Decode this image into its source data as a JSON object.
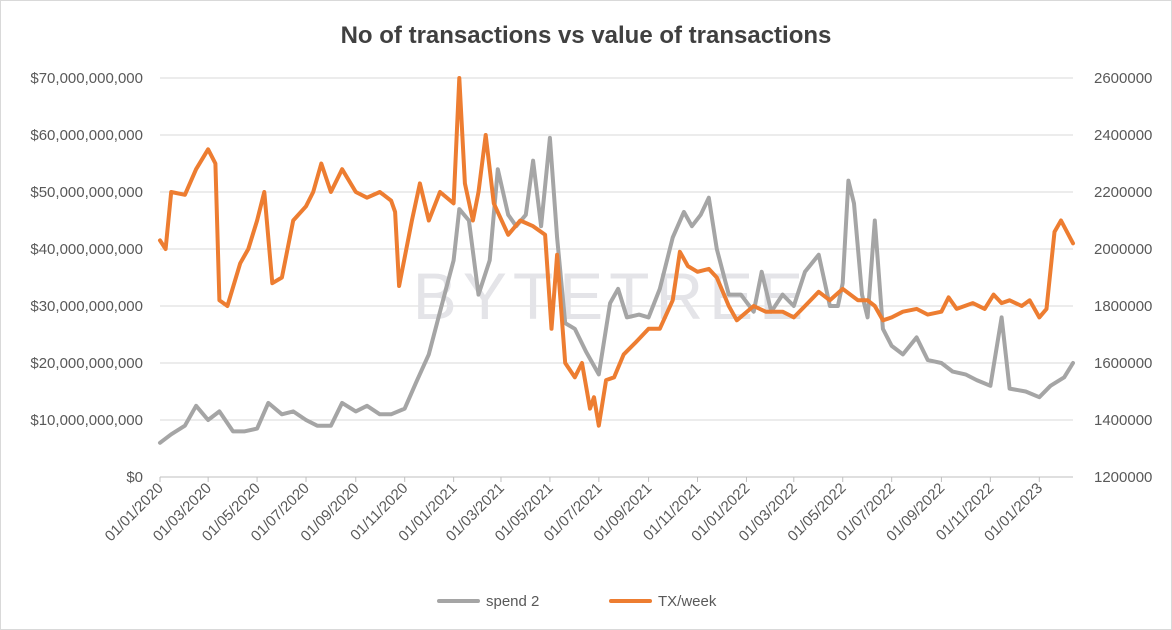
{
  "chart_data": {
    "type": "line",
    "title": "No of transactions vs value of transactions",
    "watermark": "BYTETREE",
    "x_tick_labels": [
      "01/01/2020",
      "01/03/2020",
      "01/05/2020",
      "01/07/2020",
      "01/09/2020",
      "01/11/2020",
      "01/01/2021",
      "01/03/2021",
      "01/05/2021",
      "01/07/2021",
      "01/09/2021",
      "01/11/2021",
      "01/01/2022",
      "01/03/2022",
      "01/05/2022",
      "01/07/2022",
      "01/09/2022",
      "01/11/2022",
      "01/01/2023"
    ],
    "x_range": [
      "2020-01-01",
      "2023-02-12"
    ],
    "y_left": {
      "ticks": [
        "$0",
        "$10,000,000,000",
        "$20,000,000,000",
        "$30,000,000,000",
        "$40,000,000,000",
        "$50,000,000,000",
        "$60,000,000,000",
        "$70,000,000,000"
      ],
      "range": [
        0,
        70000000000
      ]
    },
    "y_right": {
      "ticks": [
        "1200000",
        "1400000",
        "1600000",
        "1800000",
        "2000000",
        "2200000",
        "2400000",
        "2600000"
      ],
      "range": [
        1200000,
        2600000
      ]
    },
    "grid": true,
    "legend_position": "bottom",
    "series": [
      {
        "name": "spend 2",
        "axis": "left",
        "color": "#a5a5a5",
        "points": [
          [
            "2020-01-01",
            6000000000
          ],
          [
            "2020-01-15",
            7500000000
          ],
          [
            "2020-02-01",
            9000000000
          ],
          [
            "2020-02-15",
            12500000000
          ],
          [
            "2020-03-01",
            10000000000
          ],
          [
            "2020-03-15",
            11500000000
          ],
          [
            "2020-04-01",
            8000000000
          ],
          [
            "2020-04-15",
            8000000000
          ],
          [
            "2020-05-01",
            8500000000
          ],
          [
            "2020-05-15",
            13000000000
          ],
          [
            "2020-06-01",
            11000000000
          ],
          [
            "2020-06-15",
            11500000000
          ],
          [
            "2020-07-01",
            10000000000
          ],
          [
            "2020-07-15",
            9000000000
          ],
          [
            "2020-08-01",
            9000000000
          ],
          [
            "2020-08-15",
            13000000000
          ],
          [
            "2020-09-01",
            11500000000
          ],
          [
            "2020-09-15",
            12500000000
          ],
          [
            "2020-10-01",
            11000000000
          ],
          [
            "2020-10-15",
            11000000000
          ],
          [
            "2020-11-01",
            12000000000
          ],
          [
            "2020-11-15",
            16500000000
          ],
          [
            "2020-12-01",
            21500000000
          ],
          [
            "2020-12-15",
            29000000000
          ],
          [
            "2021-01-01",
            38000000000
          ],
          [
            "2021-01-08",
            47000000000
          ],
          [
            "2021-01-20",
            45000000000
          ],
          [
            "2021-02-01",
            32000000000
          ],
          [
            "2021-02-15",
            38000000000
          ],
          [
            "2021-02-25",
            54000000000
          ],
          [
            "2021-03-10",
            46000000000
          ],
          [
            "2021-03-20",
            44000000000
          ],
          [
            "2021-04-01",
            46000000000
          ],
          [
            "2021-04-10",
            55500000000
          ],
          [
            "2021-04-20",
            44000000000
          ],
          [
            "2021-05-01",
            59500000000
          ],
          [
            "2021-05-10",
            42000000000
          ],
          [
            "2021-05-20",
            27000000000
          ],
          [
            "2021-06-01",
            26000000000
          ],
          [
            "2021-06-15",
            22000000000
          ],
          [
            "2021-07-01",
            18000000000
          ],
          [
            "2021-07-15",
            30500000000
          ],
          [
            "2021-07-25",
            33000000000
          ],
          [
            "2021-08-05",
            28000000000
          ],
          [
            "2021-08-20",
            28500000000
          ],
          [
            "2021-09-01",
            28000000000
          ],
          [
            "2021-09-15",
            33000000000
          ],
          [
            "2021-10-01",
            42000000000
          ],
          [
            "2021-10-15",
            46500000000
          ],
          [
            "2021-10-25",
            44000000000
          ],
          [
            "2021-11-05",
            46000000000
          ],
          [
            "2021-11-15",
            49000000000
          ],
          [
            "2021-11-25",
            40000000000
          ],
          [
            "2021-12-10",
            32000000000
          ],
          [
            "2021-12-25",
            32000000000
          ],
          [
            "2022-01-10",
            29000000000
          ],
          [
            "2022-01-20",
            36000000000
          ],
          [
            "2022-02-01",
            29000000000
          ],
          [
            "2022-02-15",
            32000000000
          ],
          [
            "2022-03-01",
            30000000000
          ],
          [
            "2022-03-15",
            36000000000
          ],
          [
            "2022-04-01",
            39000000000
          ],
          [
            "2022-04-15",
            30000000000
          ],
          [
            "2022-04-25",
            30000000000
          ],
          [
            "2022-05-01",
            34000000000
          ],
          [
            "2022-05-08",
            52000000000
          ],
          [
            "2022-05-15",
            48000000000
          ],
          [
            "2022-05-25",
            32000000000
          ],
          [
            "2022-06-01",
            28000000000
          ],
          [
            "2022-06-10",
            45000000000
          ],
          [
            "2022-06-20",
            26000000000
          ],
          [
            "2022-07-01",
            23000000000
          ],
          [
            "2022-07-15",
            21500000000
          ],
          [
            "2022-08-01",
            24500000000
          ],
          [
            "2022-08-15",
            20500000000
          ],
          [
            "2022-09-01",
            20000000000
          ],
          [
            "2022-09-15",
            18500000000
          ],
          [
            "2022-10-01",
            18000000000
          ],
          [
            "2022-10-15",
            17000000000
          ],
          [
            "2022-11-01",
            16000000000
          ],
          [
            "2022-11-08",
            22000000000
          ],
          [
            "2022-11-15",
            28000000000
          ],
          [
            "2022-11-25",
            15500000000
          ],
          [
            "2022-12-15",
            15000000000
          ],
          [
            "2023-01-01",
            14000000000
          ],
          [
            "2023-01-15",
            16000000000
          ],
          [
            "2023-02-01",
            17500000000
          ],
          [
            "2023-02-12",
            20000000000
          ]
        ]
      },
      {
        "name": "TX/week",
        "axis": "right",
        "color": "#ed7d31",
        "points": [
          [
            "2020-01-01",
            2030000
          ],
          [
            "2020-01-08",
            2000000
          ],
          [
            "2020-01-15",
            2200000
          ],
          [
            "2020-02-01",
            2190000
          ],
          [
            "2020-02-15",
            2280000
          ],
          [
            "2020-03-01",
            2350000
          ],
          [
            "2020-03-10",
            2300000
          ],
          [
            "2020-03-15",
            1820000
          ],
          [
            "2020-03-25",
            1800000
          ],
          [
            "2020-04-10",
            1950000
          ],
          [
            "2020-04-20",
            2000000
          ],
          [
            "2020-05-01",
            2100000
          ],
          [
            "2020-05-10",
            2200000
          ],
          [
            "2020-05-20",
            1880000
          ],
          [
            "2020-06-01",
            1900000
          ],
          [
            "2020-06-15",
            2100000
          ],
          [
            "2020-07-01",
            2150000
          ],
          [
            "2020-07-10",
            2200000
          ],
          [
            "2020-07-20",
            2300000
          ],
          [
            "2020-08-01",
            2200000
          ],
          [
            "2020-08-15",
            2280000
          ],
          [
            "2020-09-01",
            2200000
          ],
          [
            "2020-09-15",
            2180000
          ],
          [
            "2020-10-01",
            2200000
          ],
          [
            "2020-10-15",
            2170000
          ],
          [
            "2020-10-20",
            2130000
          ],
          [
            "2020-10-25",
            1870000
          ],
          [
            "2020-11-10",
            2100000
          ],
          [
            "2020-11-20",
            2230000
          ],
          [
            "2020-12-01",
            2100000
          ],
          [
            "2020-12-15",
            2200000
          ],
          [
            "2021-01-01",
            2160000
          ],
          [
            "2021-01-08",
            2600000
          ],
          [
            "2021-01-15",
            2230000
          ],
          [
            "2021-01-25",
            2100000
          ],
          [
            "2021-02-01",
            2200000
          ],
          [
            "2021-02-10",
            2400000
          ],
          [
            "2021-02-20",
            2160000
          ],
          [
            "2021-03-10",
            2050000
          ],
          [
            "2021-03-25",
            2100000
          ],
          [
            "2021-04-10",
            2080000
          ],
          [
            "2021-04-25",
            2050000
          ],
          [
            "2021-05-03",
            1720000
          ],
          [
            "2021-05-10",
            1980000
          ],
          [
            "2021-05-20",
            1600000
          ],
          [
            "2021-06-01",
            1550000
          ],
          [
            "2021-06-10",
            1600000
          ],
          [
            "2021-06-20",
            1440000
          ],
          [
            "2021-06-25",
            1480000
          ],
          [
            "2021-07-01",
            1380000
          ],
          [
            "2021-07-10",
            1540000
          ],
          [
            "2021-07-20",
            1550000
          ],
          [
            "2021-08-01",
            1630000
          ],
          [
            "2021-08-15",
            1670000
          ],
          [
            "2021-09-01",
            1720000
          ],
          [
            "2021-09-15",
            1720000
          ],
          [
            "2021-10-01",
            1820000
          ],
          [
            "2021-10-10",
            1990000
          ],
          [
            "2021-10-20",
            1940000
          ],
          [
            "2021-11-01",
            1920000
          ],
          [
            "2021-11-15",
            1930000
          ],
          [
            "2021-11-25",
            1900000
          ],
          [
            "2021-12-10",
            1800000
          ],
          [
            "2021-12-20",
            1750000
          ],
          [
            "2022-01-10",
            1800000
          ],
          [
            "2022-01-25",
            1780000
          ],
          [
            "2022-02-15",
            1780000
          ],
          [
            "2022-03-01",
            1760000
          ],
          [
            "2022-03-15",
            1800000
          ],
          [
            "2022-04-01",
            1850000
          ],
          [
            "2022-04-15",
            1820000
          ],
          [
            "2022-05-01",
            1860000
          ],
          [
            "2022-05-20",
            1820000
          ],
          [
            "2022-06-01",
            1820000
          ],
          [
            "2022-06-10",
            1800000
          ],
          [
            "2022-06-20",
            1750000
          ],
          [
            "2022-07-01",
            1760000
          ],
          [
            "2022-07-15",
            1780000
          ],
          [
            "2022-08-01",
            1790000
          ],
          [
            "2022-08-15",
            1770000
          ],
          [
            "2022-09-01",
            1780000
          ],
          [
            "2022-09-10",
            1830000
          ],
          [
            "2022-09-20",
            1790000
          ],
          [
            "2022-10-10",
            1810000
          ],
          [
            "2022-10-25",
            1790000
          ],
          [
            "2022-11-05",
            1840000
          ],
          [
            "2022-11-15",
            1810000
          ],
          [
            "2022-11-25",
            1820000
          ],
          [
            "2022-12-10",
            1800000
          ],
          [
            "2022-12-20",
            1820000
          ],
          [
            "2023-01-01",
            1760000
          ],
          [
            "2023-01-10",
            1790000
          ],
          [
            "2023-01-20",
            2060000
          ],
          [
            "2023-01-28",
            2100000
          ],
          [
            "2023-02-12",
            2020000
          ]
        ]
      }
    ]
  }
}
